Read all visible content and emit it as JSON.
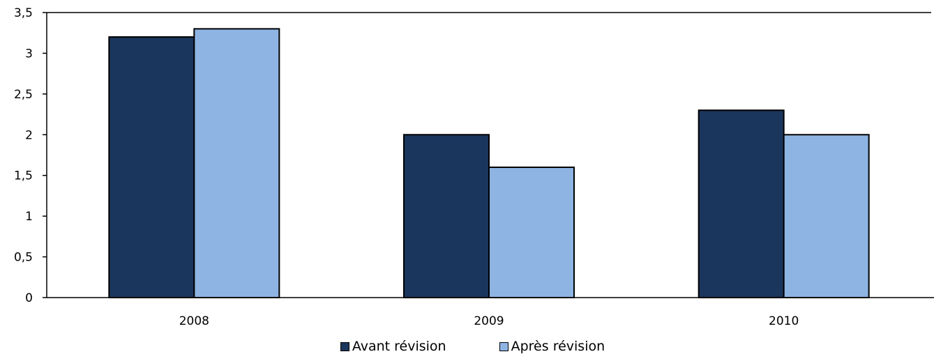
{
  "chart_data": {
    "type": "bar",
    "categories": [
      "2008",
      "2009",
      "2010"
    ],
    "series": [
      {
        "name": "Avant révision",
        "values": [
          3.2,
          2.0,
          2.3
        ],
        "color": "#1b365d"
      },
      {
        "name": "Après révision",
        "values": [
          3.3,
          1.6,
          2.0
        ],
        "color": "#8eb4e3"
      }
    ],
    "yticks": [
      "0",
      "0,5",
      "1",
      "1,5",
      "2",
      "2,5",
      "3",
      "3,5"
    ],
    "ylim": [
      0,
      3.5
    ],
    "grid": false,
    "legend_position": "bottom",
    "title": "",
    "xlabel": "",
    "ylabel": ""
  }
}
